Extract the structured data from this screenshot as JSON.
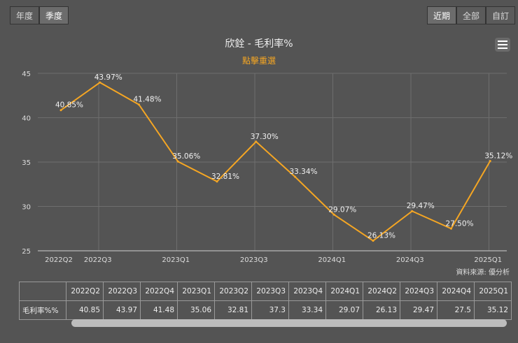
{
  "toggle_left": [
    {
      "label": "年度",
      "active": false
    },
    {
      "label": "季度",
      "active": true
    }
  ],
  "toggle_right": [
    {
      "label": "近期",
      "active": true
    },
    {
      "label": "全部",
      "active": false
    },
    {
      "label": "自訂",
      "active": false
    }
  ],
  "menu_icon": "hamburger-icon",
  "source_text": "資料來源: 優分析",
  "chart_data": {
    "type": "line",
    "title": "欣銓 - 毛利率%",
    "subtitle": "點擊重選",
    "categories": [
      "2022Q2",
      "2022Q3",
      "2022Q4",
      "2023Q1",
      "2023Q2",
      "2023Q3",
      "2023Q4",
      "2024Q1",
      "2024Q2",
      "2024Q3",
      "2024Q4",
      "2025Q1"
    ],
    "series": [
      {
        "name": "毛利率%",
        "values": [
          40.85,
          43.97,
          41.48,
          35.06,
          32.81,
          37.3,
          33.34,
          29.07,
          26.13,
          29.47,
          27.5,
          35.12
        ],
        "color": "#f5a623"
      }
    ],
    "point_labels": [
      "40.85%",
      "43.97%",
      "41.48%",
      "35.06%",
      "32.81%",
      "37.30%",
      "33.34%",
      "29.07%",
      "26.13%",
      "29.47%",
      "27.50%",
      "35.12%"
    ],
    "x_tick_labels": [
      "2022Q2",
      "2022Q3",
      "",
      "2023Q1",
      "",
      "2023Q3",
      "",
      "2024Q1",
      "",
      "2024Q3",
      "",
      "2025Q1"
    ],
    "y_ticks": [
      25,
      30,
      35,
      40,
      45
    ],
    "ylim": [
      25,
      45
    ],
    "xlabel": "",
    "ylabel": "",
    "grid": true,
    "legend": "none"
  },
  "table": {
    "row_label": "毛利率%%",
    "headers": [
      "2022Q2",
      "2022Q3",
      "2022Q4",
      "2023Q1",
      "2023Q2",
      "2023Q3",
      "2023Q4",
      "2024Q1",
      "2024Q2",
      "2024Q3",
      "2024Q4",
      "2025Q1"
    ],
    "values": [
      "40.85",
      "43.97",
      "41.48",
      "35.06",
      "32.81",
      "37.3",
      "33.34",
      "29.07",
      "26.13",
      "29.47",
      "27.5",
      "35.12"
    ]
  }
}
